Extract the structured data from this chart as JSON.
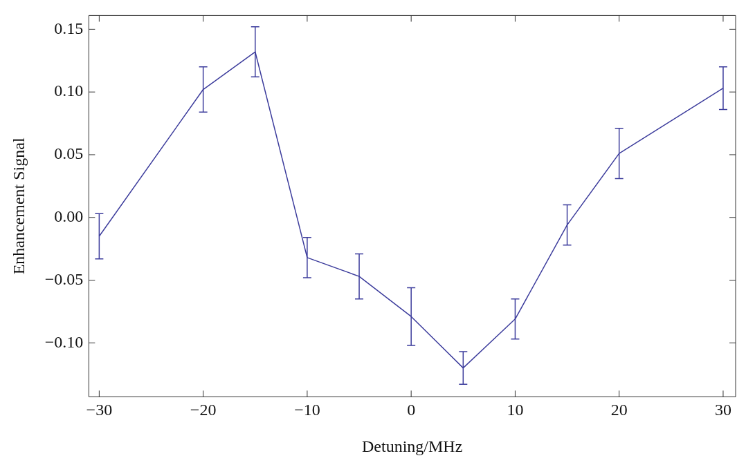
{
  "chart_data": {
    "type": "line",
    "xlabel": "Detuning/MHz",
    "ylabel": "Enhancement Signal",
    "x": [
      -30,
      -20,
      -15,
      -10,
      -5,
      0,
      5,
      10,
      15,
      20,
      30
    ],
    "series": [
      {
        "color": "#3c3c9c",
        "values": [
          -0.015,
          0.102,
          0.132,
          -0.032,
          -0.047,
          -0.079,
          -0.12,
          -0.081,
          -0.006,
          0.051,
          0.103
        ],
        "errors": [
          0.018,
          0.018,
          0.02,
          0.016,
          0.018,
          0.023,
          0.013,
          0.016,
          0.016,
          0.02,
          0.017
        ]
      }
    ],
    "xlim": [
      -31,
      31.2
    ],
    "ylim": [
      -0.143,
      0.161
    ],
    "xticks": [
      {
        "value": -30,
        "label": "−30"
      },
      {
        "value": -20,
        "label": "−20"
      },
      {
        "value": -10,
        "label": "−10"
      },
      {
        "value": 0,
        "label": "0"
      },
      {
        "value": 10,
        "label": "10"
      },
      {
        "value": 20,
        "label": "20"
      },
      {
        "value": 30,
        "label": "30"
      }
    ],
    "yticks": [
      {
        "value": -0.1,
        "label": "−0.10"
      },
      {
        "value": -0.05,
        "label": "−0.05"
      },
      {
        "value": 0,
        "label": "0.00"
      },
      {
        "value": 0.05,
        "label": "0.05"
      },
      {
        "value": 0.1,
        "label": "0.10"
      },
      {
        "value": 0.15,
        "label": "0.15"
      }
    ],
    "grid": false,
    "legend": false,
    "marker": "none",
    "line_style": "solid"
  }
}
